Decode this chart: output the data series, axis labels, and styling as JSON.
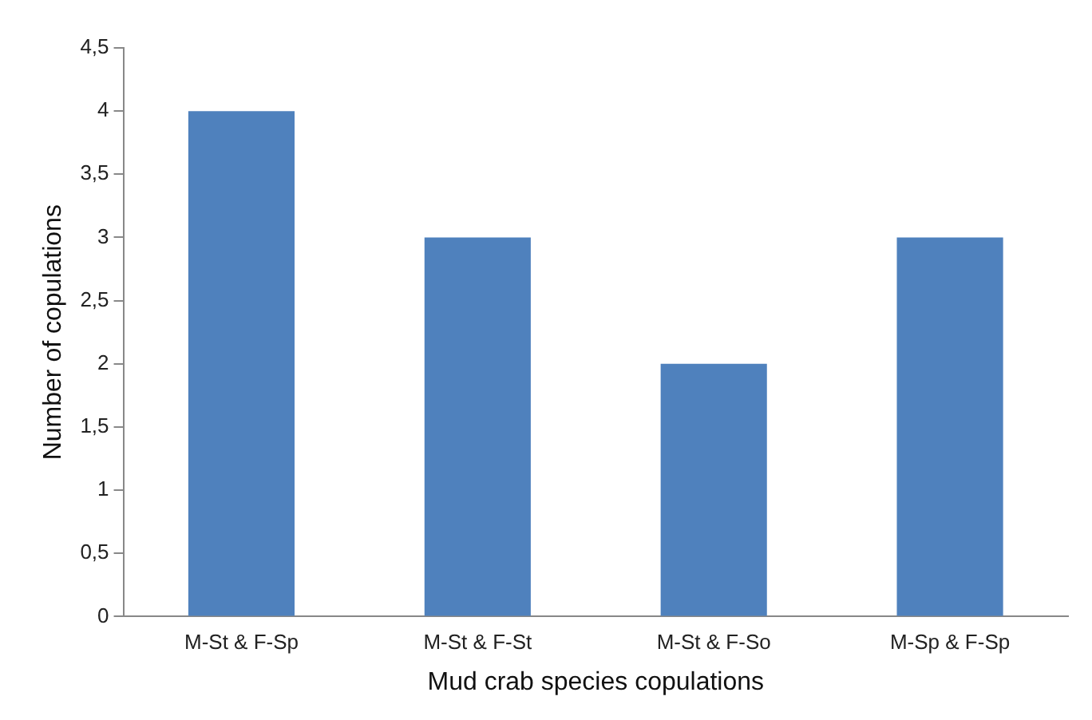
{
  "chart_data": {
    "type": "bar",
    "xlabel": "Mud crab species copulations",
    "ylabel": "Number of copulations",
    "categories": [
      "M-St & F-Sp",
      "M-St & F-St",
      "M-St & F-So",
      "M-Sp & F-Sp"
    ],
    "values": [
      4,
      3,
      2,
      3
    ],
    "color": "#4f81bd",
    "ylim": [
      0,
      4.5
    ],
    "yticks": [
      0,
      {
        "value": 0.5,
        "label": "0,5"
      },
      1,
      {
        "value": 1.5,
        "label": "1,5"
      },
      2,
      {
        "value": 2.5,
        "label": "2,5"
      },
      3,
      {
        "value": 3.5,
        "label": "3,5"
      },
      4,
      {
        "value": 4.5,
        "label": "4,5"
      }
    ],
    "grid": false,
    "legend": false
  }
}
